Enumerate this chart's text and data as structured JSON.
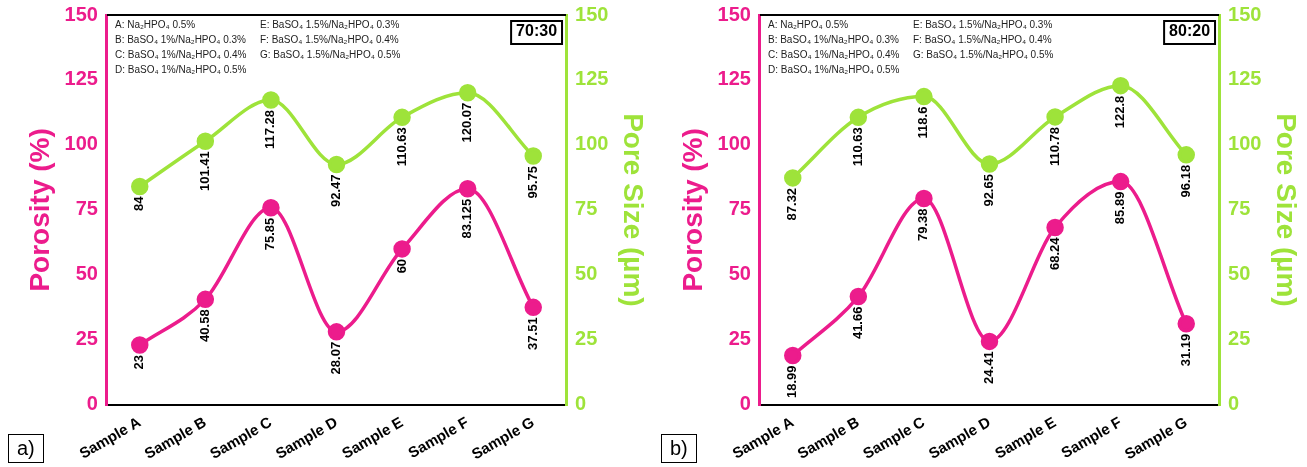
{
  "chart_data": [
    {
      "type": "line",
      "ylabel": "Porosity (%)",
      "y2label": "Pore Size (µm)",
      "categories": [
        "Sample A",
        "Sample B",
        "Sample C",
        "Sample D",
        "Sample E",
        "Sample F",
        "Sample G"
      ],
      "series": [
        {
          "color": "#ec1c8c",
          "values": [
            23,
            40.58,
            75.85,
            28.07,
            60,
            83.125,
            37.51
          ]
        },
        {
          "color": "#9ee33a",
          "axis": "y2",
          "values": [
            84,
            101.41,
            117.28,
            92.47,
            110.63,
            120.07,
            95.75
          ]
        }
      ],
      "ylim": [
        0,
        150
      ],
      "yticks": [
        0,
        25,
        50,
        75,
        100,
        125,
        150
      ],
      "y2lim": [
        0,
        150
      ],
      "y2ticks": [
        0,
        25,
        50,
        75,
        100,
        125,
        150
      ],
      "marker": "circle",
      "line_style": "solid",
      "grid": false,
      "legend": false,
      "data_labels": true,
      "annotations": [
        "A: Na₂HPO₄ 0.5%",
        "B: BaSO₄ 1%/Na₂HPO₄ 0.3%",
        "C: BaSO₄ 1%/Na₂HPO₄ 0.4%",
        "D: BaSO₄ 1%/Na₂HPO₄ 0.5%",
        "E: BaSO₄ 1.5%/Na₂HPO₄ 0.3%",
        "F: BaSO₄ 1.5%/Na₂HPO₄ 0.4%",
        "G: BaSO₄ 1.5%/Na₂HPO₄ 0.5%",
        "70:30",
        "a)"
      ]
    },
    {
      "type": "line",
      "ylabel": "Porosity (%)",
      "y2label": "Pore Size (µm)",
      "categories": [
        "Sample A",
        "Sample B",
        "Sample C",
        "Sample D",
        "Sample E",
        "Sample F",
        "Sample G"
      ],
      "series": [
        {
          "color": "#ec1c8c",
          "values": [
            18.99,
            41.66,
            79.38,
            24.41,
            68.24,
            85.89,
            31.19
          ]
        },
        {
          "color": "#9ee33a",
          "axis": "y2",
          "values": [
            87.32,
            110.63,
            118.6,
            92.65,
            110.78,
            122.8,
            96.18
          ]
        }
      ],
      "ylim": [
        0,
        150
      ],
      "yticks": [
        0,
        25,
        50,
        75,
        100,
        125,
        150
      ],
      "y2lim": [
        0,
        150
      ],
      "y2ticks": [
        0,
        25,
        50,
        75,
        100,
        125,
        150
      ],
      "marker": "circle",
      "line_style": "solid",
      "grid": false,
      "legend": false,
      "data_labels": true,
      "annotations": [
        "A: Na₂HPO₄ 0.5%",
        "B: BaSO₄ 1%/Na₂HPO₄ 0.3%",
        "C: BaSO₄ 1%/Na₂HPO₄ 0.4%",
        "D: BaSO₄ 1%/Na₂HPO₄ 0.5%",
        "E: BaSO₄ 1.5%/Na₂HPO₄ 0.3%",
        "F: BaSO₄ 1.5%/Na₂HPO₄ 0.4%",
        "G: BaSO₄ 1.5%/Na₂HPO₄ 0.5%",
        "80:20",
        "b)"
      ]
    }
  ]
}
